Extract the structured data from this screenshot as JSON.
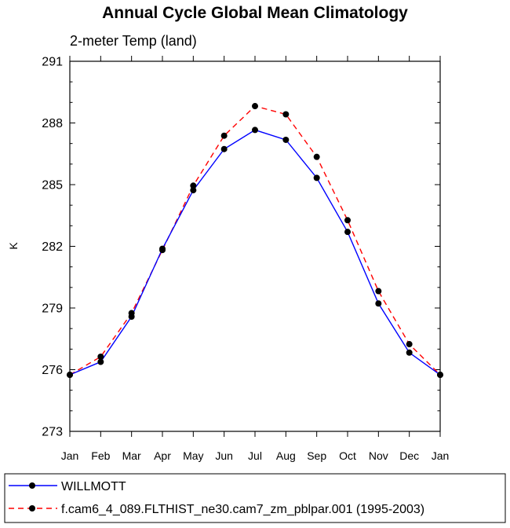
{
  "chart_data": {
    "type": "line",
    "title": "Annual Cycle Global Mean Climatology",
    "subtitle": "2-meter Temp (land)",
    "ylabel": "K",
    "xlabel": "",
    "categories": [
      "Jan",
      "Feb",
      "Mar",
      "Apr",
      "May",
      "Jun",
      "Jul",
      "Aug",
      "Sep",
      "Oct",
      "Nov",
      "Dec",
      "Jan"
    ],
    "ylim": [
      273,
      291
    ],
    "yticks": [
      "273",
      "276",
      "279",
      "282",
      "285",
      "288",
      "291"
    ],
    "grid": false,
    "legend_position": "bottom",
    "series": [
      {
        "name": "WILLMOTT",
        "color": "#0000ff",
        "line_style": "solid",
        "marker": "circle",
        "values": [
          275.75,
          276.38,
          278.58,
          281.88,
          284.73,
          286.73,
          287.66,
          287.18,
          285.33,
          282.7,
          279.22,
          276.83,
          275.75
        ]
      },
      {
        "name": "f.cam6_4_089.FLTHIST_ne30.cam7_zm_pblpar.001 (1995-2003)",
        "color": "#ff0000",
        "line_style": "dashed",
        "marker": "circle",
        "values": [
          275.75,
          276.63,
          278.75,
          281.82,
          284.95,
          287.38,
          288.82,
          288.42,
          286.35,
          283.27,
          279.82,
          277.24,
          275.75
        ]
      }
    ]
  }
}
